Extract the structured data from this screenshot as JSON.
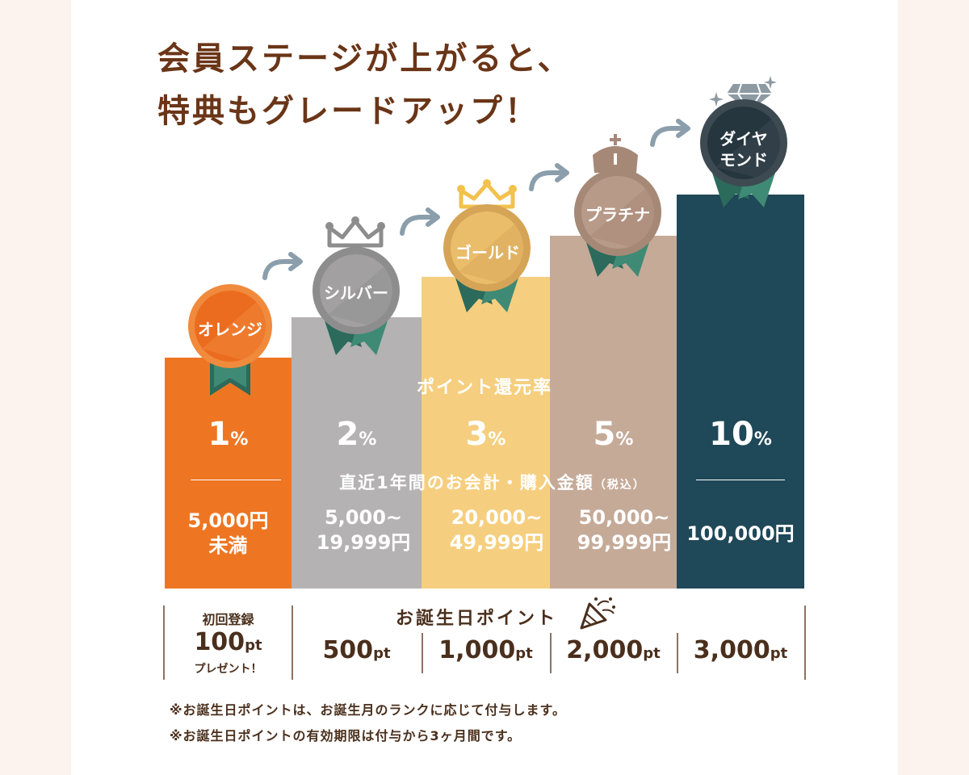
{
  "headline": {
    "line1": "会員ステージが上がると、",
    "line2": "特典もグレードアップ！"
  },
  "labels": {
    "return_rate": "ポイント還元率",
    "purchase_amount": "直近1年間のお会計・購入金額",
    "tax_note": "（税込）",
    "birthday_title": "お誕生日ポイント"
  },
  "registration": {
    "line1": "初回登録",
    "value": "100",
    "unit": "pt",
    "line3": "プレゼント！"
  },
  "stages": [
    {
      "name": "オレンジ",
      "rate": "1",
      "rate_unit": "%",
      "amount_line1": "5,000円",
      "amount_line2": "未満",
      "birthday": "500",
      "birthday_unit": "pt",
      "color": "#ee7623"
    },
    {
      "name": "シルバー",
      "rate": "2",
      "rate_unit": "%",
      "amount_line1": "5,000~",
      "amount_line2": "19,999円",
      "birthday": "1,000",
      "birthday_unit": "pt",
      "color": "#b4b2b2"
    },
    {
      "name": "ゴールド",
      "rate": "3",
      "rate_unit": "%",
      "amount_line1": "20,000~",
      "amount_line2": "49,999円",
      "birthday": "2,000",
      "birthday_unit": "pt",
      "color": "#f5cf7f"
    },
    {
      "name": "プラチナ",
      "rate": "5",
      "rate_unit": "%",
      "amount_line1": "50,000~",
      "amount_line2": "99,999円",
      "birthday": "3,000",
      "birthday_unit": "pt",
      "color": "#c5aa98"
    },
    {
      "name_line1": "ダイヤ",
      "name_line2": "モンド",
      "rate": "10",
      "rate_unit": "%",
      "amount_line1": "100,000円",
      "color": "#1f4858"
    }
  ],
  "notes": [
    "※お誕生日ポイントは、お誕生月のランクに応じて付与します。",
    "※お誕生日ポイントの有効期限は付与から3ヶ月間です。"
  ],
  "icons": [
    "arrow-right-icon",
    "crown-icon",
    "diamond-icon",
    "sparkle-icon",
    "party-popper-icon",
    "ribbon-icon"
  ]
}
